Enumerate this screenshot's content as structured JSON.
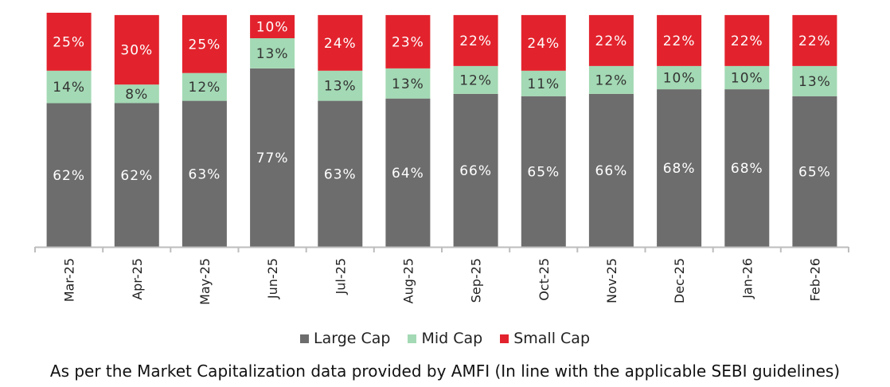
{
  "chart_data": {
    "type": "bar",
    "stacked": true,
    "percent_stacked": true,
    "categories": [
      "Mar-25",
      "Apr-25",
      "May-25",
      "Jun-25",
      "Jul-25",
      "Aug-25",
      "Sep-25",
      "Oct-25",
      "Nov-25",
      "Dec-25",
      "Jan-26",
      "Feb-26"
    ],
    "series": [
      {
        "name": "Large Cap",
        "color": "#6d6d6d",
        "values": [
          62,
          62,
          63,
          77,
          63,
          64,
          66,
          65,
          66,
          68,
          68,
          65
        ]
      },
      {
        "name": "Mid Cap",
        "color": "#a3d9b4",
        "values": [
          14,
          8,
          12,
          13,
          13,
          13,
          12,
          11,
          12,
          10,
          10,
          13
        ]
      },
      {
        "name": "Small Cap",
        "color": "#e2232d",
        "values": [
          25,
          30,
          25,
          10,
          24,
          23,
          22,
          24,
          22,
          22,
          22,
          22
        ]
      }
    ],
    "value_suffix": "%",
    "legend_position": "bottom",
    "ylim": [
      0,
      101
    ]
  },
  "legend": {
    "items": [
      {
        "label": "Large Cap",
        "color": "#6d6d6d"
      },
      {
        "label": "Mid Cap",
        "color": "#a3d9b4"
      },
      {
        "label": "Small Cap",
        "color": "#e2232d"
      }
    ]
  },
  "footnote": "As per the Market Capitalization data provided by AMFI (In line with the applicable SEBI guidelines)"
}
